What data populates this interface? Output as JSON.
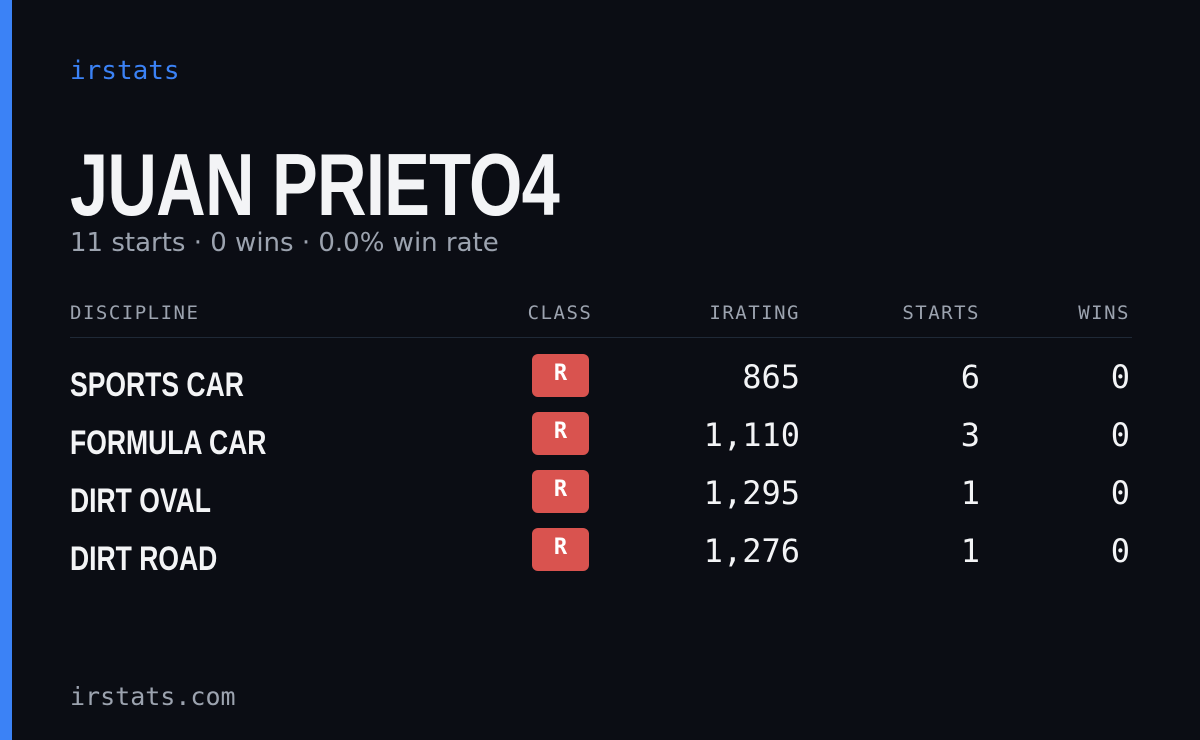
{
  "brand": "irstats",
  "title": "JUAN PRIETO4",
  "subtitle": "11 starts · 0 wins · 0.0% win rate",
  "table": {
    "headers": [
      "DISCIPLINE",
      "CLASS",
      "IRATING",
      "STARTS",
      "WINS"
    ],
    "rows": [
      [
        "SPORTS CAR",
        "R",
        "865",
        "6",
        "0"
      ],
      [
        "FORMULA CAR",
        "R",
        "1,110",
        "3",
        "0"
      ],
      [
        "DIRT OVAL",
        "R",
        "1,295",
        "1",
        "0"
      ],
      [
        "DIRT ROAD",
        "R",
        "1,276",
        "1",
        "0"
      ]
    ]
  },
  "footer": "irstats.com"
}
